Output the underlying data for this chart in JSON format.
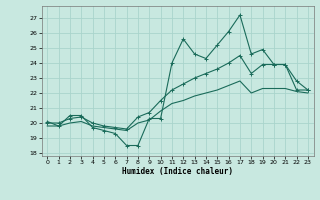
{
  "title": "",
  "xlabel": "Humidex (Indice chaleur)",
  "ylabel": "",
  "bg_color": "#c8e8e0",
  "grid_color": "#aad4cc",
  "line_color": "#1a6b5a",
  "xlim": [
    -0.5,
    23.5
  ],
  "ylim": [
    17.8,
    27.8
  ],
  "xticks": [
    0,
    1,
    2,
    3,
    4,
    5,
    6,
    7,
    8,
    9,
    10,
    11,
    12,
    13,
    14,
    15,
    16,
    17,
    18,
    19,
    20,
    21,
    22,
    23
  ],
  "yticks": [
    18,
    19,
    20,
    21,
    22,
    23,
    24,
    25,
    26,
    27
  ],
  "line1_x": [
    0,
    1,
    2,
    3,
    4,
    5,
    6,
    7,
    8,
    9,
    10,
    11,
    12,
    13,
    14,
    15,
    16,
    17,
    18,
    19,
    20,
    21,
    22,
    23
  ],
  "line1_y": [
    20.1,
    19.8,
    20.5,
    20.5,
    19.7,
    19.5,
    19.3,
    18.5,
    18.5,
    20.3,
    20.3,
    24.0,
    25.6,
    24.6,
    24.3,
    25.2,
    26.1,
    27.2,
    24.6,
    24.9,
    23.9,
    23.9,
    22.2,
    22.2
  ],
  "line2_x": [
    0,
    1,
    2,
    3,
    4,
    5,
    6,
    7,
    8,
    9,
    10,
    11,
    12,
    13,
    14,
    15,
    16,
    17,
    18,
    19,
    20,
    21,
    22,
    23
  ],
  "line2_y": [
    20.0,
    20.0,
    20.3,
    20.4,
    20.0,
    19.8,
    19.7,
    19.6,
    20.4,
    20.7,
    21.5,
    22.2,
    22.6,
    23.0,
    23.3,
    23.6,
    24.0,
    24.5,
    23.3,
    23.9,
    23.9,
    23.9,
    22.8,
    22.2
  ],
  "line3_x": [
    0,
    1,
    2,
    3,
    4,
    5,
    6,
    7,
    8,
    9,
    10,
    11,
    12,
    13,
    14,
    15,
    16,
    17,
    18,
    19,
    20,
    21,
    22,
    23
  ],
  "line3_y": [
    19.8,
    19.8,
    20.0,
    20.1,
    19.8,
    19.7,
    19.6,
    19.5,
    20.0,
    20.2,
    20.8,
    21.3,
    21.5,
    21.8,
    22.0,
    22.2,
    22.5,
    22.8,
    22.0,
    22.3,
    22.3,
    22.3,
    22.1,
    22.0
  ]
}
